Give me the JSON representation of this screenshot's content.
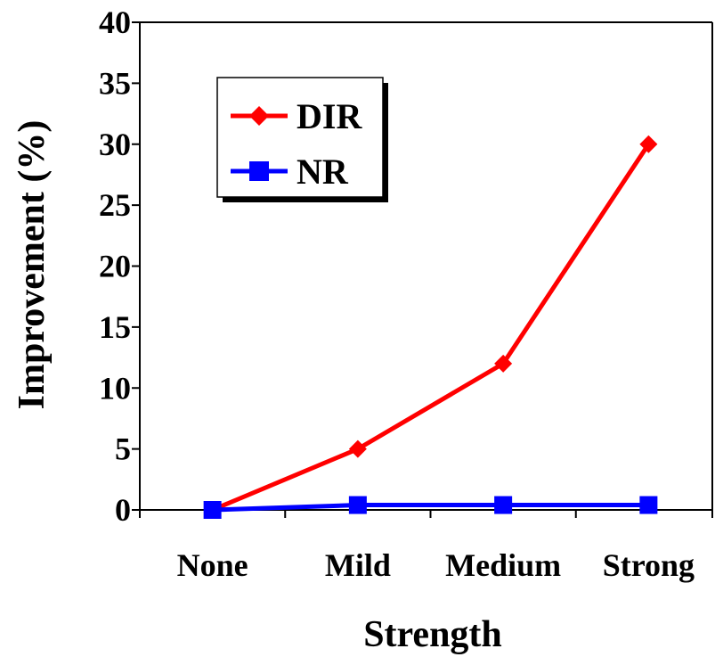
{
  "chart_data": {
    "type": "line",
    "categories": [
      "None",
      "Mild",
      "Medium",
      "Strong"
    ],
    "series": [
      {
        "name": "DIR",
        "values": [
          0,
          5,
          12,
          30
        ],
        "color": "#ff0000",
        "marker": "diamond"
      },
      {
        "name": "NR",
        "values": [
          0,
          0.4,
          0.4,
          0.4
        ],
        "color": "#0000ff",
        "marker": "square"
      }
    ],
    "xlabel": "Strength",
    "ylabel": "Improvement (%)",
    "ylim": [
      0,
      40
    ],
    "yticks": [
      0,
      5,
      10,
      15,
      20,
      25,
      30,
      35,
      40
    ],
    "ytick_labels": [
      "0",
      "5",
      "10",
      "15",
      "20",
      "25",
      "30",
      "35",
      "40"
    ],
    "grid": false,
    "legend_position": "top-left",
    "frame_color": "#000000"
  }
}
